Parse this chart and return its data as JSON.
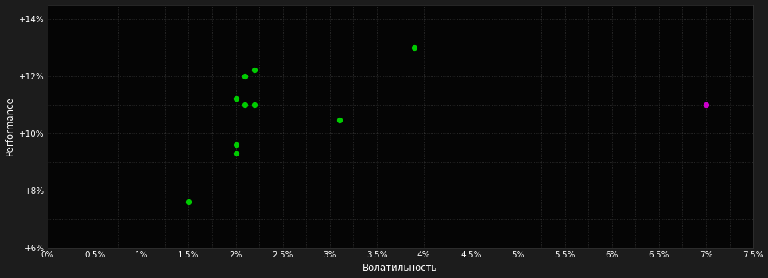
{
  "background_color": "#1c1c1c",
  "plot_bg_color": "#050505",
  "grid_color": "#333333",
  "text_color": "#ffffff",
  "xlabel": "Волатильность",
  "ylabel": "Performance",
  "xlim": [
    0.0,
    0.075
  ],
  "ylim": [
    0.06,
    0.145
  ],
  "xticks": [
    0.0,
    0.005,
    0.01,
    0.015,
    0.02,
    0.025,
    0.03,
    0.035,
    0.04,
    0.045,
    0.05,
    0.055,
    0.06,
    0.065,
    0.07,
    0.075
  ],
  "yticks": [
    0.06,
    0.08,
    0.1,
    0.12,
    0.14
  ],
  "ytick_labels": [
    "+6%",
    "+8%",
    "+10%",
    "+12%",
    "+14%"
  ],
  "xtick_labels": [
    "0%",
    "0.5%",
    "1%",
    "1.5%",
    "2%",
    "2.5%",
    "3%",
    "3.5%",
    "4%",
    "4.5%",
    "5%",
    "5.5%",
    "6%",
    "6.5%",
    "7%",
    "7.5%"
  ],
  "green_points": [
    [
      0.015,
      0.076
    ],
    [
      0.02,
      0.093
    ],
    [
      0.02,
      0.096
    ],
    [
      0.02,
      0.112
    ],
    [
      0.021,
      0.11
    ],
    [
      0.022,
      0.11
    ],
    [
      0.021,
      0.12
    ],
    [
      0.022,
      0.122
    ],
    [
      0.031,
      0.1045
    ],
    [
      0.039,
      0.13
    ]
  ],
  "magenta_points": [
    [
      0.07,
      0.11
    ]
  ],
  "green_color": "#00cc00",
  "magenta_color": "#cc00cc",
  "point_size": 18
}
